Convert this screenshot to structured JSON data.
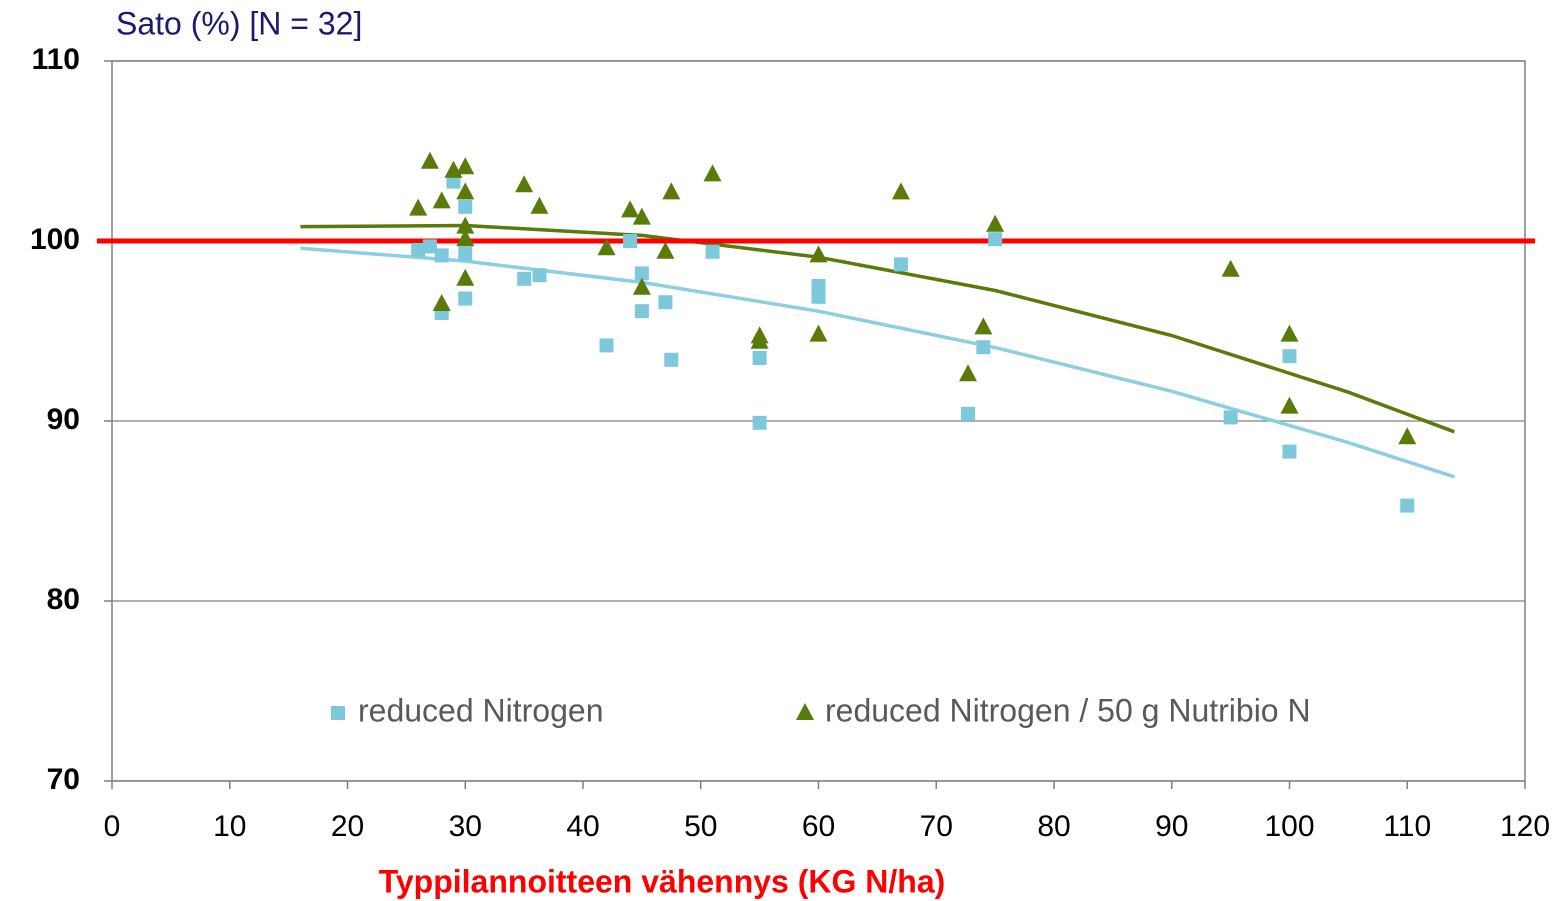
{
  "chart_data": {
    "type": "scatter",
    "title": "Sato (%) [N = 32]",
    "x_label": "Typpilannoitteen vähennys (KG N/ha)",
    "xlim": [
      0,
      120
    ],
    "xticks": [
      0,
      10,
      20,
      30,
      40,
      50,
      60,
      70,
      80,
      90,
      100,
      110,
      120
    ],
    "ylim": [
      70,
      110
    ],
    "yticks": [
      70,
      80,
      90,
      100,
      110
    ],
    "grid": true,
    "legend": "bottom",
    "reference_line": {
      "value": 100,
      "color": "#ff0000"
    },
    "series": [
      {
        "name": "reduced Nitrogen",
        "color": "#7ec8dc",
        "marker": "square",
        "x": [
          26,
          27,
          28,
          28,
          29,
          30,
          30,
          30,
          35,
          36.3,
          42,
          44,
          45,
          45,
          47,
          47.5,
          51,
          55,
          55,
          60,
          60,
          67,
          72.7,
          74,
          75,
          95,
          100,
          100,
          110
        ],
        "values": [
          99.5,
          99.7,
          99.2,
          96.0,
          103.3,
          101.9,
          99.3,
          96.8,
          97.9,
          98.1,
          94.2,
          100,
          98.2,
          96.1,
          96.6,
          93.4,
          99.4,
          93.5,
          89.9,
          97.5,
          96.9,
          98.7,
          90.4,
          94.1,
          100.1,
          90.2,
          93.6,
          88.3,
          85.3
        ]
      },
      {
        "name": "reduced Nitrogen / 50 g Nutribio N",
        "color": "#5a7a0a",
        "marker": "triangle",
        "x": [
          26,
          27,
          28,
          28,
          29,
          30,
          30,
          30,
          30,
          30,
          35,
          36.3,
          42,
          44,
          45,
          45,
          47,
          47.5,
          51,
          55,
          55,
          60,
          60,
          67,
          72.7,
          74,
          75,
          95,
          100,
          100,
          110
        ],
        "values": [
          101.8,
          104.4,
          102.2,
          96.5,
          103.9,
          104.1,
          102.7,
          100.8,
          100.1,
          97.9,
          103.1,
          101.9,
          99.6,
          101.7,
          101.3,
          97.4,
          99.4,
          102.7,
          103.7,
          94.7,
          94.4,
          99.2,
          94.8,
          102.7,
          92.6,
          95.2,
          100.9,
          98.4,
          94.8,
          90.8,
          89.1
        ]
      }
    ],
    "trendlines": [
      {
        "color": "#8ccfe0",
        "x": [
          16,
          30,
          45,
          60,
          75,
          90,
          105,
          114
        ],
        "values": [
          99.6,
          98.88,
          97.7,
          96.1,
          94.08,
          91.65,
          88.8,
          86.9
        ]
      },
      {
        "color": "#5a7a0a",
        "x": [
          16,
          30,
          45,
          60,
          75,
          90,
          105,
          114
        ],
        "values": [
          100.8,
          100.86,
          100.31,
          99.1,
          97.25,
          94.75,
          91.6,
          89.4
        ]
      }
    ]
  }
}
